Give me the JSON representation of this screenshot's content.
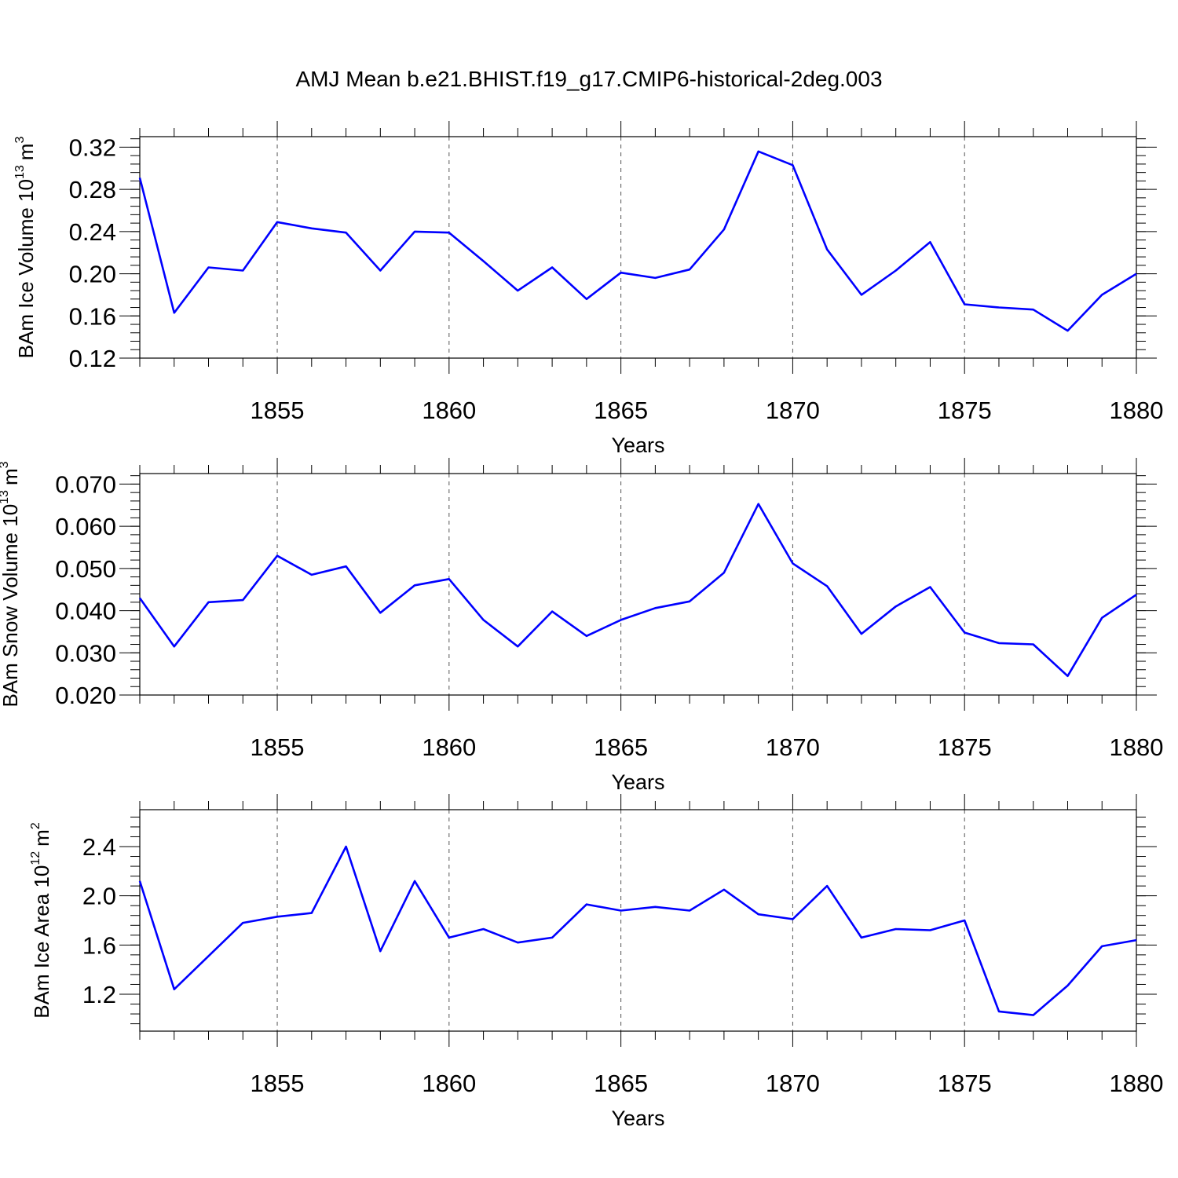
{
  "title": "AMJ Mean b.e21.BHIST.f19_g17.CMIP6-historical-2deg.003",
  "colors": {
    "line": "#0000ff",
    "axis": "#000000",
    "grid": "#555555"
  },
  "chart_data": [
    {
      "type": "line",
      "ylabel": {
        "text": "BAm Ice Volume 10",
        "exponent": "13",
        "unit": "m",
        "unit_exponent": "3"
      },
      "xlabel": "Years",
      "xlim": [
        1851,
        1880
      ],
      "ylim": [
        0.12,
        0.33
      ],
      "xticks": [
        "1855",
        "1860",
        "1865",
        "1870",
        "1875",
        "1880"
      ],
      "yticks": [
        "0.12",
        "0.16",
        "0.20",
        "0.24",
        "0.28",
        "0.32"
      ],
      "grid": "dashed vertical at major x ticks",
      "x": [
        1851,
        1852,
        1853,
        1854,
        1855,
        1856,
        1857,
        1858,
        1859,
        1860,
        1861,
        1862,
        1863,
        1864,
        1865,
        1866,
        1867,
        1868,
        1869,
        1870,
        1871,
        1872,
        1873,
        1874,
        1875,
        1876,
        1877,
        1878,
        1879,
        1880
      ],
      "values": [
        0.291,
        0.163,
        0.206,
        0.203,
        0.249,
        0.243,
        0.239,
        0.203,
        0.24,
        0.239,
        0.212,
        0.184,
        0.206,
        0.176,
        0.201,
        0.196,
        0.204,
        0.242,
        0.316,
        0.303,
        0.223,
        0.18,
        0.203,
        0.23,
        0.171,
        0.168,
        0.166,
        0.146,
        0.18,
        0.2
      ]
    },
    {
      "type": "line",
      "ylabel": {
        "text": "BAm Snow Volume 10",
        "exponent": "13",
        "unit": "m",
        "unit_exponent": "3"
      },
      "xlabel": "Years",
      "xlim": [
        1851,
        1880
      ],
      "ylim": [
        0.02,
        0.0725
      ],
      "xticks": [
        "1855",
        "1860",
        "1865",
        "1870",
        "1875",
        "1880"
      ],
      "yticks": [
        "0.020",
        "0.030",
        "0.040",
        "0.050",
        "0.060",
        "0.070"
      ],
      "grid": "dashed vertical at major x ticks",
      "x": [
        1851,
        1852,
        1853,
        1854,
        1855,
        1856,
        1857,
        1858,
        1859,
        1860,
        1861,
        1862,
        1863,
        1864,
        1865,
        1866,
        1867,
        1868,
        1869,
        1870,
        1871,
        1872,
        1873,
        1874,
        1875,
        1876,
        1877,
        1878,
        1879,
        1880
      ],
      "values": [
        0.043,
        0.0315,
        0.042,
        0.0425,
        0.053,
        0.0485,
        0.0505,
        0.0395,
        0.046,
        0.0475,
        0.0378,
        0.0315,
        0.0398,
        0.034,
        0.0378,
        0.0406,
        0.0422,
        0.049,
        0.0653,
        0.0512,
        0.0458,
        0.0345,
        0.041,
        0.0456,
        0.0348,
        0.0323,
        0.032,
        0.0245,
        0.0383,
        0.0438
      ]
    },
    {
      "type": "line",
      "ylabel": {
        "text": "BAm Ice Area 10",
        "exponent": "12",
        "unit": "m",
        "unit_exponent": "2"
      },
      "xlabel": "Years",
      "xlim": [
        1851,
        1880
      ],
      "ylim": [
        0.9,
        2.7
      ],
      "xticks": [
        "1855",
        "1860",
        "1865",
        "1870",
        "1875",
        "1880"
      ],
      "yticks": [
        "1.2",
        "1.6",
        "2.0",
        "2.4"
      ],
      "grid": "dashed vertical at major x ticks",
      "x": [
        1851,
        1852,
        1853,
        1854,
        1855,
        1856,
        1857,
        1858,
        1859,
        1860,
        1861,
        1862,
        1863,
        1864,
        1865,
        1866,
        1867,
        1868,
        1869,
        1870,
        1871,
        1872,
        1873,
        1874,
        1875,
        1876,
        1877,
        1878,
        1879,
        1880
      ],
      "values": [
        2.12,
        1.24,
        1.51,
        1.78,
        1.83,
        1.86,
        2.4,
        1.55,
        2.12,
        1.66,
        1.73,
        1.62,
        1.66,
        1.93,
        1.88,
        1.91,
        1.88,
        2.05,
        1.85,
        1.81,
        2.08,
        1.66,
        1.73,
        1.72,
        1.8,
        1.06,
        1.03,
        1.27,
        1.59,
        1.64
      ]
    }
  ]
}
